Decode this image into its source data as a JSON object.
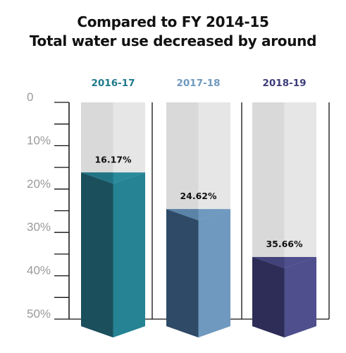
{
  "title": {
    "line1": "Compared to FY 2014-15",
    "line2": "Total water use decreased by around"
  },
  "chart_data": {
    "type": "bar",
    "title": "Compared to FY 2014-15 Total water use decreased by around",
    "categories": [
      "2016-17",
      "2017-18",
      "2018-19"
    ],
    "values": [
      16.17,
      24.62,
      35.66
    ],
    "value_labels": [
      "16.17%",
      "24.62%",
      "35.66%"
    ],
    "ylim": [
      0,
      50
    ],
    "y_ticks": [
      0,
      10,
      20,
      30,
      40,
      50
    ],
    "y_tick_labels": [
      "0",
      "10%",
      "20%",
      "30%",
      "40%",
      "50%"
    ],
    "orientation": "values increase downward from top",
    "grid": false,
    "legend": "none"
  },
  "colors": {
    "axis": "#111111",
    "tick_label": "#9a9a9a",
    "background_column_light": "#e6e6e6",
    "background_column_dark": "#d9d9d9",
    "bars": [
      {
        "year": "#1f7a8c",
        "front_left": "#1b4f5c",
        "front_right": "#258394",
        "top_light": "#2a8a9a",
        "top_dark": "#1a6272"
      },
      {
        "year": "#6f99bf",
        "front_left": "#2e4a66",
        "front_right": "#6f99bf",
        "top_light": "#6f99bf",
        "top_dark": "#4b6f94"
      },
      {
        "year": "#3d3d7a",
        "front_left": "#2d2d57",
        "front_right": "#4e4f8c",
        "top_light": "#4e4f8c",
        "top_dark": "#3a3a6e"
      }
    ]
  }
}
